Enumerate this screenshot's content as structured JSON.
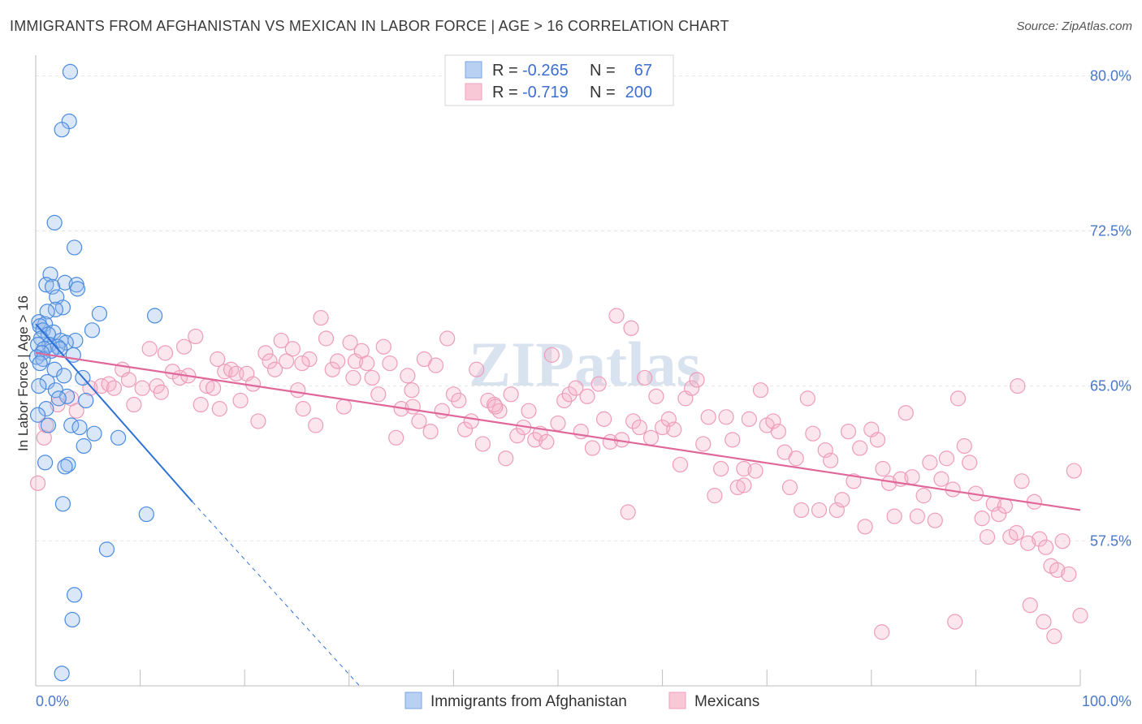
{
  "title": "IMMIGRANTS FROM AFGHANISTAN VS MEXICAN IN LABOR FORCE | AGE > 16 CORRELATION CHART",
  "source": "Source: ZipAtlas.com",
  "watermark": "ZIPatlas",
  "colors": {
    "blue": "#4a8be0",
    "pink": "#ea7aa0",
    "blue_line": "#2f72d6",
    "pink_line": "#e0679a",
    "label": "#4a78c8"
  },
  "legend": {
    "rows": [
      {
        "r_label": "R =",
        "r_value": "-0.265",
        "n_label": "N =",
        "n_value": "67"
      },
      {
        "r_label": "R =",
        "r_value": "-0.719",
        "n_label": "N =",
        "n_value": "200"
      }
    ]
  },
  "chart_data": {
    "type": "scatter",
    "title": "IMMIGRANTS FROM AFGHANISTAN VS MEXICAN IN LABOR FORCE | AGE > 16 CORRELATION CHART",
    "xlabel": "",
    "ylabel": "In Labor Force | Age > 16",
    "x_tick_labels": [
      "0.0%",
      "100.0%"
    ],
    "y_tick_labels": [
      "80.0%",
      "72.5%",
      "65.0%",
      "57.5%"
    ],
    "y_ticks": [
      80.0,
      72.5,
      65.0,
      57.5
    ],
    "xlim": [
      0,
      100
    ],
    "ylim": [
      50.5,
      81.0
    ],
    "grid": true,
    "legend_position": "top-center",
    "series": [
      {
        "name": "Immigrants from Afghanistan",
        "color": "#4a8be0",
        "trend": {
          "x0": 0.0,
          "y0": 68.0,
          "x1": 15.0,
          "y1": 59.4,
          "dash_to_x": 31.0,
          "dash_to_y": 50.5
        },
        "points": [
          [
            3.3,
            80.2
          ],
          [
            3.2,
            77.8
          ],
          [
            2.5,
            77.4
          ],
          [
            1.8,
            72.9
          ],
          [
            3.7,
            71.7
          ],
          [
            1.4,
            70.4
          ],
          [
            2.8,
            70.0
          ],
          [
            3.9,
            69.9
          ],
          [
            1.0,
            69.9
          ],
          [
            1.6,
            69.8
          ],
          [
            4.0,
            69.7
          ],
          [
            2.0,
            69.3
          ],
          [
            2.6,
            68.8
          ],
          [
            1.9,
            68.7
          ],
          [
            1.1,
            68.6
          ],
          [
            6.1,
            68.5
          ],
          [
            11.4,
            68.4
          ],
          [
            0.3,
            68.1
          ],
          [
            0.9,
            68.0
          ],
          [
            0.4,
            67.9
          ],
          [
            5.4,
            67.7
          ],
          [
            0.7,
            67.7
          ],
          [
            1.7,
            67.6
          ],
          [
            1.2,
            67.5
          ],
          [
            0.5,
            67.3
          ],
          [
            2.4,
            67.2
          ],
          [
            3.8,
            67.2
          ],
          [
            2.9,
            67.1
          ],
          [
            1.3,
            67.0
          ],
          [
            0.2,
            67.0
          ],
          [
            2.1,
            66.9
          ],
          [
            2.3,
            66.8
          ],
          [
            0.8,
            66.8
          ],
          [
            1.5,
            66.7
          ],
          [
            0.6,
            66.6
          ],
          [
            3.6,
            66.5
          ],
          [
            0.1,
            66.4
          ],
          [
            0.7,
            66.3
          ],
          [
            0.4,
            66.1
          ],
          [
            1.8,
            65.8
          ],
          [
            2.7,
            65.5
          ],
          [
            4.5,
            65.4
          ],
          [
            1.1,
            65.2
          ],
          [
            0.3,
            65.0
          ],
          [
            1.9,
            64.8
          ],
          [
            3.0,
            64.5
          ],
          [
            2.2,
            64.4
          ],
          [
            4.8,
            64.3
          ],
          [
            1.0,
            63.9
          ],
          [
            0.2,
            63.6
          ],
          [
            3.4,
            63.1
          ],
          [
            1.2,
            63.1
          ],
          [
            4.2,
            63.0
          ],
          [
            5.6,
            62.7
          ],
          [
            7.9,
            62.5
          ],
          [
            4.6,
            62.1
          ],
          [
            0.9,
            61.3
          ],
          [
            3.1,
            61.2
          ],
          [
            2.8,
            61.1
          ],
          [
            2.6,
            59.3
          ],
          [
            10.6,
            58.8
          ],
          [
            6.8,
            57.1
          ],
          [
            3.7,
            54.9
          ],
          [
            3.5,
            53.7
          ],
          [
            2.5,
            51.1
          ]
        ]
      },
      {
        "name": "Mexicans",
        "color": "#ea7aa0",
        "trend": {
          "x0": 0.0,
          "y0": 66.6,
          "x1": 100.0,
          "y1": 59.0
        },
        "points": [
          [
            0.2,
            60.3
          ],
          [
            0.8,
            62.5
          ],
          [
            1.0,
            63.1
          ],
          [
            2.1,
            64.1
          ],
          [
            3.4,
            64.4
          ],
          [
            3.9,
            63.8
          ],
          [
            5.2,
            64.9
          ],
          [
            6.3,
            65.0
          ],
          [
            7.0,
            65.1
          ],
          [
            7.5,
            64.9
          ],
          [
            8.3,
            65.8
          ],
          [
            8.9,
            65.3
          ],
          [
            9.4,
            64.1
          ],
          [
            10.2,
            64.9
          ],
          [
            10.9,
            66.8
          ],
          [
            11.6,
            65.0
          ],
          [
            12.4,
            66.6
          ],
          [
            13.1,
            65.7
          ],
          [
            13.8,
            65.4
          ],
          [
            14.2,
            66.9
          ],
          [
            14.6,
            65.5
          ],
          [
            15.3,
            67.4
          ],
          [
            15.8,
            64.1
          ],
          [
            16.4,
            65.0
          ],
          [
            17.0,
            64.9
          ],
          [
            17.6,
            63.9
          ],
          [
            18.1,
            65.7
          ],
          [
            18.7,
            65.8
          ],
          [
            19.2,
            65.6
          ],
          [
            19.6,
            64.3
          ],
          [
            20.2,
            65.6
          ],
          [
            20.8,
            65.1
          ],
          [
            21.3,
            63.3
          ],
          [
            22.0,
            66.6
          ],
          [
            22.4,
            66.2
          ],
          [
            22.9,
            65.8
          ],
          [
            23.5,
            67.2
          ],
          [
            24.0,
            66.2
          ],
          [
            24.6,
            66.8
          ],
          [
            25.1,
            64.8
          ],
          [
            25.6,
            63.9
          ],
          [
            26.2,
            66.3
          ],
          [
            26.8,
            63.1
          ],
          [
            27.3,
            68.3
          ],
          [
            27.8,
            67.3
          ],
          [
            28.4,
            65.8
          ],
          [
            28.9,
            66.2
          ],
          [
            29.5,
            64.0
          ],
          [
            30.1,
            67.1
          ],
          [
            30.6,
            66.2
          ],
          [
            31.2,
            66.7
          ],
          [
            31.7,
            66.1
          ],
          [
            32.2,
            65.4
          ],
          [
            32.8,
            64.6
          ],
          [
            33.3,
            66.9
          ],
          [
            33.9,
            66.1
          ],
          [
            34.5,
            62.5
          ],
          [
            35.0,
            63.9
          ],
          [
            35.6,
            65.5
          ],
          [
            36.1,
            64.0
          ],
          [
            36.7,
            63.3
          ],
          [
            37.2,
            66.3
          ],
          [
            37.8,
            62.8
          ],
          [
            38.3,
            66.0
          ],
          [
            38.9,
            63.8
          ],
          [
            39.4,
            67.3
          ],
          [
            40.0,
            64.6
          ],
          [
            40.5,
            64.3
          ],
          [
            41.1,
            62.9
          ],
          [
            41.7,
            63.3
          ],
          [
            42.2,
            65.8
          ],
          [
            42.8,
            62.2
          ],
          [
            43.3,
            64.3
          ],
          [
            43.9,
            64.1
          ],
          [
            44.4,
            63.8
          ],
          [
            45.0,
            61.5
          ],
          [
            45.5,
            64.6
          ],
          [
            46.1,
            62.6
          ],
          [
            46.7,
            63.0
          ],
          [
            47.2,
            63.8
          ],
          [
            47.8,
            62.4
          ],
          [
            48.3,
            62.7
          ],
          [
            48.9,
            62.3
          ],
          [
            49.4,
            66.5
          ],
          [
            50.0,
            63.2
          ],
          [
            50.6,
            64.3
          ],
          [
            51.1,
            64.6
          ],
          [
            51.7,
            64.9
          ],
          [
            52.2,
            62.8
          ],
          [
            52.8,
            64.5
          ],
          [
            53.3,
            62.0
          ],
          [
            53.9,
            65.1
          ],
          [
            54.4,
            63.4
          ],
          [
            55.0,
            62.3
          ],
          [
            55.6,
            68.4
          ],
          [
            56.1,
            62.4
          ],
          [
            56.7,
            58.9
          ],
          [
            57.2,
            63.3
          ],
          [
            57.8,
            63.0
          ],
          [
            58.3,
            65.4
          ],
          [
            58.9,
            62.5
          ],
          [
            59.4,
            64.5
          ],
          [
            60.0,
            63.0
          ],
          [
            60.6,
            63.4
          ],
          [
            61.1,
            62.9
          ],
          [
            61.7,
            61.2
          ],
          [
            62.2,
            64.4
          ],
          [
            62.8,
            64.9
          ],
          [
            63.3,
            65.3
          ],
          [
            63.9,
            62.2
          ],
          [
            64.4,
            63.5
          ],
          [
            65.0,
            59.7
          ],
          [
            65.6,
            61.0
          ],
          [
            66.1,
            63.5
          ],
          [
            66.7,
            62.4
          ],
          [
            67.2,
            60.1
          ],
          [
            67.8,
            61.0
          ],
          [
            68.3,
            63.4
          ],
          [
            68.9,
            60.9
          ],
          [
            69.4,
            64.8
          ],
          [
            70.0,
            63.1
          ],
          [
            70.6,
            63.3
          ],
          [
            71.1,
            62.8
          ],
          [
            71.7,
            61.8
          ],
          [
            72.2,
            60.1
          ],
          [
            72.8,
            61.5
          ],
          [
            73.3,
            59.0
          ],
          [
            73.9,
            64.4
          ],
          [
            74.4,
            62.7
          ],
          [
            75.0,
            59.0
          ],
          [
            75.6,
            61.9
          ],
          [
            76.1,
            61.4
          ],
          [
            76.7,
            59.0
          ],
          [
            77.2,
            59.5
          ],
          [
            77.8,
            62.8
          ],
          [
            78.3,
            60.4
          ],
          [
            78.9,
            62.0
          ],
          [
            79.4,
            58.2
          ],
          [
            80.0,
            62.9
          ],
          [
            80.6,
            62.4
          ],
          [
            81.1,
            61.0
          ],
          [
            81.7,
            60.3
          ],
          [
            82.2,
            58.7
          ],
          [
            82.8,
            60.5
          ],
          [
            83.3,
            63.7
          ],
          [
            83.9,
            60.6
          ],
          [
            84.4,
            58.7
          ],
          [
            85.0,
            59.7
          ],
          [
            85.6,
            61.3
          ],
          [
            86.1,
            58.5
          ],
          [
            86.7,
            60.5
          ],
          [
            87.2,
            61.5
          ],
          [
            87.8,
            60.0
          ],
          [
            88.3,
            64.4
          ],
          [
            88.9,
            62.1
          ],
          [
            89.4,
            61.3
          ],
          [
            90.0,
            59.8
          ],
          [
            90.6,
            58.6
          ],
          [
            91.1,
            57.7
          ],
          [
            91.7,
            59.3
          ],
          [
            92.2,
            58.8
          ],
          [
            92.8,
            59.2
          ],
          [
            93.3,
            57.7
          ],
          [
            93.9,
            57.9
          ],
          [
            94.4,
            60.4
          ],
          [
            95.0,
            57.4
          ],
          [
            95.6,
            59.4
          ],
          [
            96.1,
            57.6
          ],
          [
            96.7,
            57.2
          ],
          [
            97.2,
            56.3
          ],
          [
            97.8,
            56.1
          ],
          [
            98.3,
            57.5
          ],
          [
            98.9,
            55.9
          ],
          [
            99.4,
            60.9
          ],
          [
            100.0,
            53.9
          ],
          [
            97.5,
            52.9
          ],
          [
            96.5,
            53.6
          ],
          [
            95.2,
            54.4
          ],
          [
            88.0,
            53.6
          ],
          [
            81.0,
            53.1
          ],
          [
            94.0,
            65.0
          ],
          [
            67.8,
            60.2
          ],
          [
            44.0,
            64.0
          ],
          [
            36.0,
            64.8
          ],
          [
            25.5,
            66.1
          ],
          [
            12.0,
            64.7
          ],
          [
            17.4,
            66.3
          ],
          [
            30.4,
            65.4
          ],
          [
            57.0,
            67.8
          ]
        ]
      }
    ]
  }
}
